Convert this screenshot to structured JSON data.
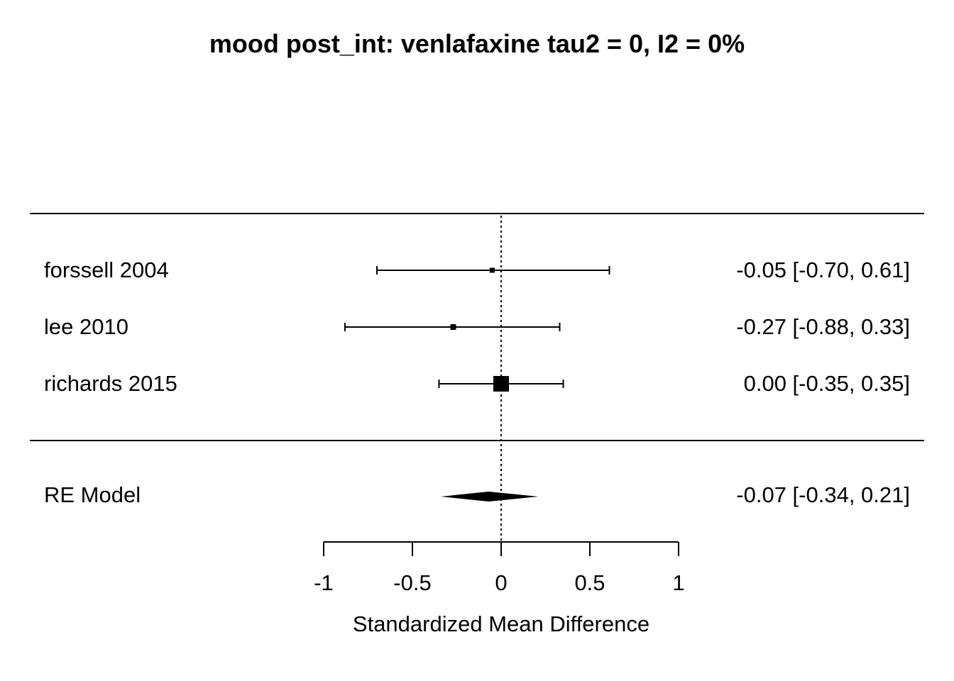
{
  "chart_data": {
    "type": "forest",
    "title": "mood post_int: venlafaxine tau2 = 0, I2 = 0%",
    "xlabel": "Standardized Mean Difference",
    "xlim": [
      -1,
      1
    ],
    "ticks": [
      -1,
      -0.5,
      0,
      0.5,
      1
    ],
    "tick_labels": [
      "-1",
      "-0.5",
      "0",
      "0.5",
      "1"
    ],
    "reference_line": 0,
    "studies": [
      {
        "name": "forssell 2004",
        "estimate": -0.05,
        "lower": -0.7,
        "upper": 0.61,
        "weight_size": 7,
        "label": "-0.05 [-0.70, 0.61]"
      },
      {
        "name": "lee 2010",
        "estimate": -0.27,
        "lower": -0.88,
        "upper": 0.33,
        "weight_size": 8,
        "label": "-0.27 [-0.88, 0.33]"
      },
      {
        "name": "richards 2015",
        "estimate": 0.0,
        "lower": -0.35,
        "upper": 0.35,
        "weight_size": 22,
        "label": "0.00 [-0.35, 0.35]"
      }
    ],
    "summary": {
      "name": "RE Model",
      "estimate": -0.07,
      "lower": -0.34,
      "upper": 0.21,
      "label": "-0.07 [-0.34, 0.21]"
    }
  }
}
